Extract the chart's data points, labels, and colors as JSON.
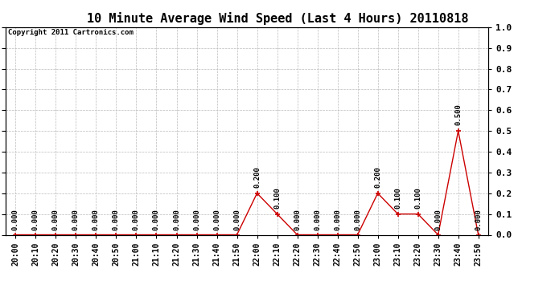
{
  "title": "10 Minute Average Wind Speed (Last 4 Hours) 20110818",
  "copyright": "Copyright 2011 Cartronics.com",
  "x_labels": [
    "20:00",
    "20:10",
    "20:20",
    "20:30",
    "20:40",
    "20:50",
    "21:00",
    "21:10",
    "21:20",
    "21:30",
    "21:40",
    "21:50",
    "22:00",
    "22:10",
    "22:20",
    "22:30",
    "22:40",
    "22:50",
    "23:00",
    "23:10",
    "23:20",
    "23:30",
    "23:40",
    "23:50"
  ],
  "y_values": [
    0.0,
    0.0,
    0.0,
    0.0,
    0.0,
    0.0,
    0.0,
    0.0,
    0.0,
    0.0,
    0.0,
    0.0,
    0.2,
    0.1,
    0.0,
    0.0,
    0.0,
    0.0,
    0.2,
    0.1,
    0.1,
    0.0,
    0.5,
    0.0
  ],
  "line_color": "#cc0000",
  "marker_color": "#cc0000",
  "bg_color": "#ffffff",
  "grid_color": "#bbbbbb",
  "ylim": [
    0.0,
    1.0
  ],
  "yticks": [
    0.0,
    0.1,
    0.2,
    0.3,
    0.4,
    0.5,
    0.6,
    0.7,
    0.8,
    0.9,
    1.0
  ],
  "title_fontsize": 11,
  "tick_fontsize": 7,
  "annotation_fontsize": 6.5,
  "copyright_fontsize": 6.5
}
